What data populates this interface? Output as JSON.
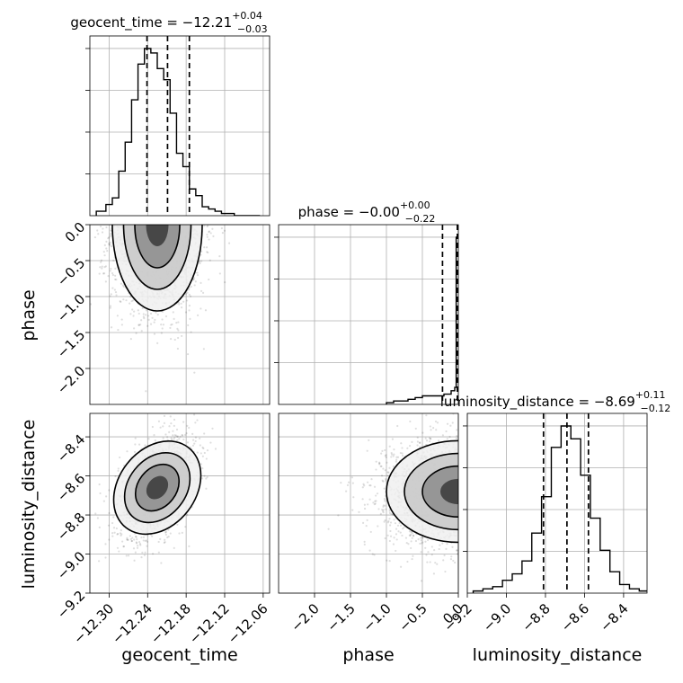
{
  "chart_data": {
    "type": "corner",
    "parameters": [
      "geocent_time",
      "phase",
      "luminosity_distance"
    ],
    "titles": [
      {
        "name": "geocent_time",
        "prefix": "geocent_time = ",
        "median": "−12.21",
        "plus": "+0.04",
        "minus": "−0.03"
      },
      {
        "name": "phase",
        "prefix": "phase = ",
        "median": "−0.00",
        "plus": "+0.00",
        "minus": "−0.22"
      },
      {
        "name": "luminosity_distance",
        "prefix": "luminosity_distance = ",
        "median": "−8.69",
        "plus": "+0.11",
        "minus": "−0.12"
      }
    ],
    "axis_labels": [
      "geocent_time",
      "phase",
      "luminosity_distance"
    ],
    "ranges": {
      "geocent_time": [
        -12.33,
        -12.05
      ],
      "phase": [
        -2.5,
        0.0
      ],
      "luminosity_distance": [
        -9.2,
        -8.28
      ]
    },
    "ticks": {
      "geocent_time": {
        "values": [
          -12.3,
          -12.24,
          -12.18,
          -12.12,
          -12.06
        ],
        "labels": [
          "−12.30",
          "−12.24",
          "−12.18",
          "−12.12",
          "−12.06"
        ]
      },
      "phase": {
        "values": [
          -2.0,
          -1.5,
          -1.0,
          -0.5,
          0.0
        ],
        "labels": [
          "−2.0",
          "−1.5",
          "−1.0",
          "−0.5",
          "0.0"
        ]
      },
      "luminosity_distance": {
        "values": [
          -9.2,
          -9.0,
          -8.8,
          -8.6,
          -8.4
        ],
        "labels": [
          "−9.2",
          "−9.0",
          "−8.8",
          "−8.6",
          "−8.4"
        ]
      }
    },
    "quantiles": {
      "geocent_time": [
        -12.241,
        -12.209,
        -12.175
      ],
      "phase": [
        -0.22,
        -0.01,
        0.0
      ],
      "luminosity_distance": [
        -8.81,
        -8.69,
        -8.58
      ]
    },
    "histograms": {
      "geocent_time": {
        "edges": [
          -12.32,
          -12.305,
          -12.295,
          -12.285,
          -12.275,
          -12.265,
          -12.255,
          -12.245,
          -12.235,
          -12.225,
          -12.215,
          -12.205,
          -12.195,
          -12.185,
          -12.175,
          -12.165,
          -12.155,
          -12.145,
          -12.135,
          -12.125,
          -12.115,
          -12.105,
          -12.095,
          -12.085,
          -12.075,
          -12.065
        ],
        "counts": [
          2,
          5,
          8,
          20,
          33,
          52,
          68,
          75,
          73,
          66,
          61,
          46,
          28,
          22,
          12,
          9,
          4,
          3,
          2,
          1,
          1,
          0,
          0,
          0,
          0
        ]
      },
      "phase": {
        "edges": [
          -1.0,
          -0.9,
          -0.8,
          -0.7,
          -0.6,
          -0.5,
          -0.4,
          -0.3,
          -0.2,
          -0.1,
          -0.05,
          -0.03,
          0.0
        ],
        "counts": [
          1,
          2,
          2,
          3,
          4,
          5,
          5,
          5,
          6,
          8,
          10,
          98
        ]
      },
      "luminosity_distance": {
        "edges": [
          -9.17,
          -9.12,
          -9.07,
          -9.02,
          -8.97,
          -8.92,
          -8.87,
          -8.82,
          -8.77,
          -8.72,
          -8.67,
          -8.62,
          -8.57,
          -8.52,
          -8.47,
          -8.42,
          -8.37,
          -8.32,
          -8.28
        ],
        "counts": [
          1,
          2,
          3,
          6,
          9,
          15,
          28,
          45,
          68,
          78,
          72,
          55,
          35,
          20,
          10,
          4,
          2,
          1
        ]
      }
    },
    "density_2d": {
      "geocent_time_vs_phase": {
        "center": [
          -12.225,
          0.0
        ],
        "spread": [
          0.035,
          0.6
        ],
        "n_points": 1600
      },
      "geocent_time_vs_luminosity_distance": {
        "center": [
          -12.225,
          -8.66
        ],
        "spread": [
          0.03,
          0.13
        ],
        "correlation": 0.45,
        "n_points": 1600
      },
      "phase_vs_luminosity_distance": {
        "center": [
          0.0,
          -8.68
        ],
        "spread": [
          0.5,
          0.13
        ],
        "n_points": 1600
      }
    }
  }
}
